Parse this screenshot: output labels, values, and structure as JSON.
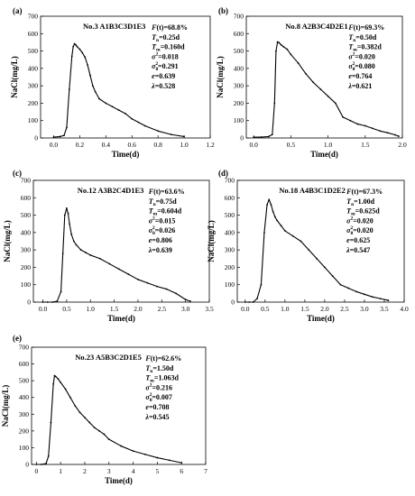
{
  "chart_data": [
    {
      "panel": "(a)",
      "type": "line",
      "title": "No.3 A1B3C3D1E3",
      "xlabel": "Time(d)",
      "ylabel": "NaCl(mg/L)",
      "xlim": [
        -0.1,
        1.2
      ],
      "ylim": [
        0,
        700
      ],
      "xticks": [
        0.0,
        0.2,
        0.4,
        0.6,
        0.8,
        1.0,
        1.2
      ],
      "xtick_labels": [
        "0.0",
        "0.2",
        "0.4",
        "0.6",
        "0.8",
        "1.0",
        "1.2"
      ],
      "yticks": [
        0,
        100,
        200,
        300,
        400,
        500,
        600,
        700
      ],
      "ytick_labels": [
        "0",
        "100",
        "200",
        "300",
        "400",
        "500",
        "600",
        "700"
      ],
      "annotations": [
        {
          "lhs": "F",
          "sub": "",
          "sup": "",
          "op": "(t)=",
          "value": "68.8%"
        },
        {
          "lhs": "T",
          "sub": "n",
          "sup": "",
          "op": "=",
          "value": "0.25d"
        },
        {
          "lhs": "T",
          "sub": "m",
          "sup": "",
          "op": "=",
          "value": "0.160d"
        },
        {
          "lhs": "σ",
          "sub": "",
          "sup": "2",
          "op": "=",
          "value": "0.018"
        },
        {
          "lhs": "σ",
          "sub": "θ",
          "sup": "2",
          "op": "=",
          "value": "0.291"
        },
        {
          "lhs": "e",
          "sub": "",
          "sup": "",
          "op": "=",
          "value": "0.639"
        },
        {
          "lhs": "λ",
          "sub": "",
          "sup": "",
          "op": "=",
          "value": "0.528"
        }
      ],
      "x": [
        0.0,
        0.05,
        0.08,
        0.1,
        0.12,
        0.14,
        0.15,
        0.16,
        0.17,
        0.18,
        0.2,
        0.22,
        0.24,
        0.26,
        0.28,
        0.3,
        0.32,
        0.35,
        0.4,
        0.45,
        0.5,
        0.55,
        0.6,
        0.65,
        0.7,
        0.8,
        0.9,
        1.0
      ],
      "y": [
        5,
        8,
        15,
        60,
        280,
        470,
        525,
        542,
        535,
        525,
        510,
        490,
        465,
        420,
        360,
        300,
        265,
        225,
        200,
        180,
        160,
        140,
        110,
        90,
        70,
        40,
        20,
        8
      ]
    },
    {
      "panel": "(b)",
      "type": "line",
      "title": "No.8 A2B3C4D2E1",
      "xlabel": "Time(d)",
      "ylabel": "NaCl(mg/L)",
      "xlim": [
        -0.1,
        2.0
      ],
      "ylim": [
        0,
        700
      ],
      "xticks": [
        0.0,
        0.5,
        1.0,
        1.5,
        2.0
      ],
      "xtick_labels": [
        "0.0",
        "0.5",
        "1.0",
        "1.5",
        "2.0"
      ],
      "yticks": [
        0,
        100,
        200,
        300,
        400,
        500,
        600,
        700
      ],
      "ytick_labels": [
        "0",
        "100",
        "200",
        "300",
        "400",
        "500",
        "600",
        "700"
      ],
      "annotations": [
        {
          "lhs": "F",
          "sub": "",
          "sup": "",
          "op": "(t)=",
          "value": "69.3%"
        },
        {
          "lhs": "T",
          "sub": "n",
          "sup": "",
          "op": "=",
          "value": "0.50d"
        },
        {
          "lhs": "T",
          "sub": "m",
          "sup": "",
          "op": "=",
          "value": "0.382d"
        },
        {
          "lhs": "σ",
          "sub": "",
          "sup": "2",
          "op": "=",
          "value": "0.020"
        },
        {
          "lhs": "σ",
          "sub": "θ",
          "sup": "2",
          "op": "=",
          "value": "0.080"
        },
        {
          "lhs": "e",
          "sub": "",
          "sup": "",
          "op": "=",
          "value": "0.764"
        },
        {
          "lhs": "λ",
          "sub": "",
          "sup": "",
          "op": "=",
          "value": "0.621"
        }
      ],
      "x": [
        0.0,
        0.1,
        0.2,
        0.25,
        0.28,
        0.3,
        0.32,
        0.34,
        0.37,
        0.4,
        0.45,
        0.5,
        0.6,
        0.7,
        0.8,
        0.9,
        1.0,
        1.1,
        1.2,
        1.3,
        1.4,
        1.5,
        1.6,
        1.7,
        1.8,
        1.9,
        1.95
      ],
      "y": [
        5,
        5,
        8,
        20,
        200,
        500,
        552,
        548,
        535,
        525,
        510,
        480,
        430,
        370,
        320,
        280,
        240,
        200,
        120,
        100,
        80,
        70,
        55,
        40,
        30,
        18,
        10
      ]
    },
    {
      "panel": "(c)",
      "type": "line",
      "title": "No.12 A3B2C4D1E3",
      "xlabel": "Time(d)",
      "ylabel": "NaCl(mg/L)",
      "xlim": [
        -0.2,
        3.5
      ],
      "ylim": [
        0,
        700
      ],
      "xticks": [
        0.0,
        0.5,
        1.0,
        1.5,
        2.0,
        2.5,
        3.0,
        3.5
      ],
      "xtick_labels": [
        "0.0",
        "0.5",
        "1.0",
        "1.5",
        "2.0",
        "2.5",
        "3.0",
        "3.5"
      ],
      "yticks": [
        0,
        100,
        200,
        300,
        400,
        500,
        600,
        700
      ],
      "ytick_labels": [
        "0",
        "100",
        "200",
        "300",
        "400",
        "500",
        "600",
        "700"
      ],
      "annotations": [
        {
          "lhs": "F",
          "sub": "",
          "sup": "",
          "op": "(t)=",
          "value": "63.6%"
        },
        {
          "lhs": "T",
          "sub": "n",
          "sup": "",
          "op": "=",
          "value": "0.75d"
        },
        {
          "lhs": "T",
          "sub": "m",
          "sup": "",
          "op": "=",
          "value": "0.604d"
        },
        {
          "lhs": "σ",
          "sub": "",
          "sup": "2",
          "op": "=",
          "value": "0.015"
        },
        {
          "lhs": "σ",
          "sub": "θ",
          "sup": "2",
          "op": "=",
          "value": "0.026"
        },
        {
          "lhs": "e",
          "sub": "",
          "sup": "",
          "op": "=",
          "value": "0.806"
        },
        {
          "lhs": "λ",
          "sub": "",
          "sup": "",
          "op": "=",
          "value": "0.639"
        }
      ],
      "x": [
        0.0,
        0.1,
        0.2,
        0.3,
        0.38,
        0.42,
        0.46,
        0.5,
        0.53,
        0.56,
        0.6,
        0.65,
        0.7,
        0.8,
        0.9,
        1.0,
        1.2,
        1.4,
        1.6,
        1.8,
        2.0,
        2.2,
        2.4,
        2.6,
        2.8,
        3.0,
        3.1
      ],
      "y": [
        0,
        0,
        0,
        5,
        60,
        280,
        500,
        540,
        510,
        450,
        390,
        350,
        330,
        300,
        285,
        270,
        250,
        220,
        190,
        160,
        130,
        110,
        90,
        75,
        50,
        15,
        5
      ]
    },
    {
      "panel": "(d)",
      "type": "line",
      "title": "No.18 A4B3C1D2E2",
      "xlabel": "Time(d)",
      "ylabel": "NaCl(mg/L)",
      "xlim": [
        -0.2,
        4.0
      ],
      "ylim": [
        0,
        700
      ],
      "xticks": [
        0.0,
        0.5,
        1.0,
        1.5,
        2.0,
        2.5,
        3.0,
        3.5,
        4.0
      ],
      "xtick_labels": [
        "0.0",
        "0.5",
        "1.0",
        "1.5",
        "2.0",
        "2.5",
        "3.0",
        "3.5",
        "4.0"
      ],
      "yticks": [
        0,
        100,
        200,
        300,
        400,
        500,
        600,
        700
      ],
      "ytick_labels": [
        "0",
        "100",
        "200",
        "300",
        "400",
        "500",
        "600",
        "700"
      ],
      "annotations": [
        {
          "lhs": "F",
          "sub": "",
          "sup": "",
          "op": "(t)=",
          "value": "67.3%"
        },
        {
          "lhs": "T",
          "sub": "n",
          "sup": "",
          "op": "=",
          "value": "1.00d"
        },
        {
          "lhs": "T",
          "sub": "m",
          "sup": "",
          "op": "=",
          "value": "0.625d"
        },
        {
          "lhs": "σ",
          "sub": "",
          "sup": "2",
          "op": "=",
          "value": "0.020"
        },
        {
          "lhs": "σ",
          "sub": "θ",
          "sup": "2",
          "op": "=",
          "value": "0.020"
        },
        {
          "lhs": "e",
          "sub": "",
          "sup": "",
          "op": "=",
          "value": "0.625"
        },
        {
          "lhs": "λ",
          "sub": "",
          "sup": "",
          "op": "=",
          "value": "0.547"
        }
      ],
      "x": [
        0.0,
        0.1,
        0.2,
        0.3,
        0.4,
        0.48,
        0.55,
        0.6,
        0.65,
        0.7,
        0.75,
        0.8,
        0.9,
        1.0,
        1.2,
        1.4,
        1.6,
        1.8,
        2.0,
        2.2,
        2.4,
        2.6,
        2.8,
        3.0,
        3.2,
        3.4,
        3.6
      ],
      "y": [
        0,
        0,
        0,
        20,
        100,
        400,
        560,
        590,
        560,
        520,
        490,
        470,
        440,
        410,
        380,
        350,
        300,
        250,
        200,
        150,
        100,
        80,
        60,
        45,
        30,
        20,
        10
      ]
    },
    {
      "panel": "(e)",
      "type": "line",
      "title": "No.23 A5B3C2D1E5",
      "xlabel": "Time(d)",
      "ylabel": "NaCl(mg/L)",
      "xlim": [
        -0.2,
        7.0
      ],
      "ylim": [
        0,
        700
      ],
      "xticks": [
        0,
        1,
        2,
        3,
        4,
        5,
        6,
        7
      ],
      "xtick_labels": [
        "0",
        "1",
        "2",
        "3",
        "4",
        "5",
        "6",
        "7"
      ],
      "yticks": [
        0,
        100,
        200,
        300,
        400,
        500,
        600,
        700
      ],
      "ytick_labels": [
        "0",
        "100",
        "200",
        "300",
        "400",
        "500",
        "600",
        "700"
      ],
      "annotations": [
        {
          "lhs": "F",
          "sub": "",
          "sup": "",
          "op": "(t)=",
          "value": "62.6%"
        },
        {
          "lhs": "T",
          "sub": "n",
          "sup": "",
          "op": "=",
          "value": "1.50d"
        },
        {
          "lhs": "T",
          "sub": "m",
          "sup": "",
          "op": "=",
          "value": "1.063d"
        },
        {
          "lhs": "σ",
          "sub": "",
          "sup": "2",
          "op": "=",
          "value": "0.216"
        },
        {
          "lhs": "σ",
          "sub": "θ",
          "sup": "2",
          "op": "=",
          "value": "0.007"
        },
        {
          "lhs": "e",
          "sub": "",
          "sup": "",
          "op": "=",
          "value": "0.708"
        },
        {
          "lhs": "λ",
          "sub": "",
          "sup": "",
          "op": "=",
          "value": "0.545"
        }
      ],
      "x": [
        0.0,
        0.2,
        0.4,
        0.5,
        0.6,
        0.7,
        0.75,
        0.8,
        0.9,
        1.0,
        1.2,
        1.4,
        1.6,
        1.8,
        2.0,
        2.2,
        2.4,
        2.6,
        2.8,
        3.0,
        3.5,
        4.0,
        4.5,
        5.0,
        5.5,
        6.0
      ],
      "y": [
        0,
        0,
        5,
        50,
        250,
        480,
        530,
        525,
        510,
        490,
        450,
        400,
        350,
        310,
        280,
        250,
        220,
        200,
        180,
        150,
        110,
        80,
        60,
        40,
        25,
        10
      ]
    }
  ]
}
